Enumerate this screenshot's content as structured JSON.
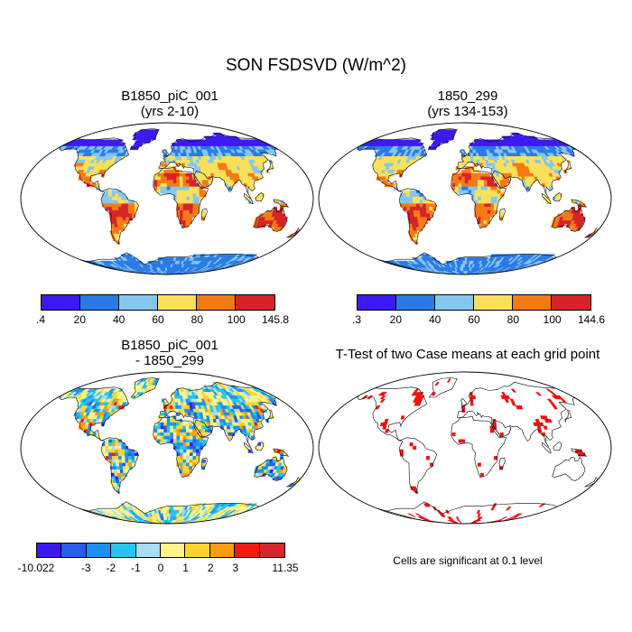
{
  "title": "SON FSDSVD (W/m^2)",
  "panels": [
    {
      "id": "p1",
      "title_line1": "B1850_piC_001",
      "title_line2": "(yrs 2-10)",
      "colorbar": {
        "colors": [
          "#3a1aef",
          "#2a7ae6",
          "#85c6ee",
          "#f8e05a",
          "#f57a14",
          "#d6232a"
        ],
        "labels": [
          ".4",
          "20",
          "40",
          "60",
          "80",
          "100",
          "145.8"
        ]
      }
    },
    {
      "id": "p2",
      "title_line1": "1850_299",
      "title_line2": "(yrs 134-153)",
      "colorbar": {
        "colors": [
          "#3a1aef",
          "#2a7ae6",
          "#85c6ee",
          "#f8e05a",
          "#f57a14",
          "#d6232a"
        ],
        "labels": [
          ".3",
          "20",
          "40",
          "60",
          "80",
          "100",
          "144.6"
        ]
      }
    },
    {
      "id": "p3",
      "title_line1": "B1850_piC_001",
      "title_line2": "- 1850_299",
      "colorbar": {
        "colors": [
          "#3a1aef",
          "#2a5ce8",
          "#1f8fef",
          "#26c4f0",
          "#a6dcf4",
          "#fff38c",
          "#fcd52c",
          "#fa9d10",
          "#f21a12",
          "#d6282c"
        ],
        "labels": [
          "-10.022",
          "-3",
          "-2",
          "-1",
          "0",
          "1",
          "2",
          "3",
          "11.35"
        ]
      }
    },
    {
      "id": "p4",
      "title_line1": "T-Test of two Case means at each grid point",
      "note": "Cells are significant at 0.1 level",
      "significant_color": "#ee1111"
    }
  ]
}
